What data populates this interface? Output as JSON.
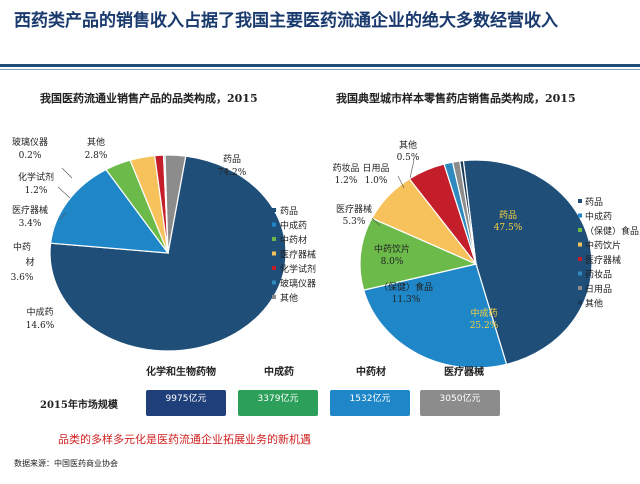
{
  "title": "西药类产品的销售收入占据了我国主要医药流通企业的绝大多数经营收入",
  "colors": {
    "rule": "#1f4e79",
    "note": "#d02020"
  },
  "chart_data": [
    {
      "type": "pie",
      "title": "我国医药流通业销售产品的品类构成，2015",
      "slices": [
        {
          "name": "药品",
          "value": 74.2,
          "label": "74.2%",
          "color": "#1f4e79"
        },
        {
          "name": "中成药",
          "value": 14.6,
          "label": "14.6%",
          "color": "#1f86c8"
        },
        {
          "name": "中药材",
          "value": 3.6,
          "label": "3.6%",
          "color": "#6cbb4a"
        },
        {
          "name": "医疗器械",
          "value": 3.4,
          "label": "3.4%",
          "color": "#f7c25c"
        },
        {
          "name": "化学试剂",
          "value": 1.2,
          "label": "1.2%",
          "color": "#c41e2a"
        },
        {
          "name": "玻璃仪器",
          "value": 0.2,
          "label": "0.2%",
          "color": "#2f8bbf"
        },
        {
          "name": "其他",
          "value": 2.8,
          "label": "2.8%",
          "color": "#8c8c8c"
        }
      ],
      "slice_label_names": [
        "药品",
        "中成药",
        "中药\n材",
        "医疗器械",
        "化学试剂",
        "玻璃仪器",
        "其他"
      ],
      "legend": [
        "药品",
        "中成药",
        "中药材",
        "医疗器械",
        "化学试剂",
        "玻璃仪器",
        "其他"
      ],
      "legend_placement": "right"
    },
    {
      "type": "pie",
      "title": "我国典型城市样本零售药店销售品类构成，2015",
      "slices": [
        {
          "name": "药品",
          "value": 47.5,
          "label": "47.5%",
          "color": "#1f4e79"
        },
        {
          "name": "中成药",
          "value": 25.2,
          "label": "25.2%",
          "color": "#1f86c8"
        },
        {
          "name": "（保健）食品",
          "value": 11.3,
          "label": "11.3%",
          "color": "#6cbb4a"
        },
        {
          "name": "中药饮片",
          "value": 8.0,
          "label": "8.0%",
          "color": "#f7c25c"
        },
        {
          "name": "医疗器械",
          "value": 5.3,
          "label": "5.3%",
          "color": "#c41e2a"
        },
        {
          "name": "药妆品",
          "value": 1.2,
          "label": "1.2%",
          "color": "#2f8bbf"
        },
        {
          "name": "日用品",
          "value": 1.0,
          "label": "1.0%",
          "color": "#8c8c8c"
        },
        {
          "name": "其他",
          "value": 0.5,
          "label": "0.5%",
          "color": "#1a3a5a"
        }
      ],
      "legend": [
        "药品",
        "中成药",
        "（保健）食品",
        "中药饮片",
        "医疗器械",
        "药妆品",
        "日用品",
        "其他"
      ],
      "legend_placement": "right"
    },
    {
      "type": "table",
      "row_label": "2015年市场规模",
      "categories": [
        "化学和生物药物",
        "中成药",
        "中药材",
        "医疗器械"
      ],
      "values": [
        "9975亿元",
        "3379亿元",
        "1532亿元",
        "3050亿元"
      ],
      "colors": [
        "#1f3f7a",
        "#2ca05a",
        "#1f86c8",
        "#8c8c8c"
      ]
    }
  ],
  "note": "品类的多样多元化是医药流通企业拓展业务的新机遇",
  "source": "数据来源：中国医药商业协会"
}
